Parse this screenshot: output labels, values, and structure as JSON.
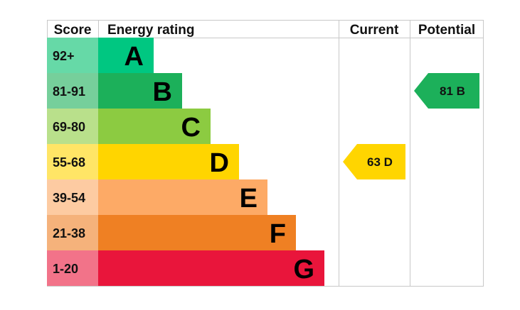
{
  "chart_data": {
    "type": "bar",
    "title": "",
    "headers": {
      "score": "Score",
      "rating": "Energy rating",
      "current": "Current",
      "potential": "Potential"
    },
    "bands": [
      {
        "letter": "A",
        "range": "92+",
        "color": "#00c781",
        "score_color": "#66d9a7"
      },
      {
        "letter": "B",
        "range": "81-91",
        "color": "#1cb05a",
        "score_color": "#76cf9b"
      },
      {
        "letter": "C",
        "range": "69-80",
        "color": "#8ccb41",
        "score_color": "#b9e08b"
      },
      {
        "letter": "D",
        "range": "55-68",
        "color": "#ffd500",
        "score_color": "#ffe566"
      },
      {
        "letter": "E",
        "range": "39-54",
        "color": "#fdaa66",
        "score_color": "#fdcba2"
      },
      {
        "letter": "F",
        "range": "21-38",
        "color": "#ef8023",
        "score_color": "#f5b27b"
      },
      {
        "letter": "G",
        "range": "1-20",
        "color": "#e9153b",
        "score_color": "#f27389"
      }
    ],
    "current": {
      "value": 63,
      "band": "D",
      "label": "63  D",
      "color": "#ffd500"
    },
    "potential": {
      "value": 81,
      "band": "B",
      "label": "81  B",
      "color": "#1cb05a"
    },
    "grid_color": "#c8c8c8"
  }
}
